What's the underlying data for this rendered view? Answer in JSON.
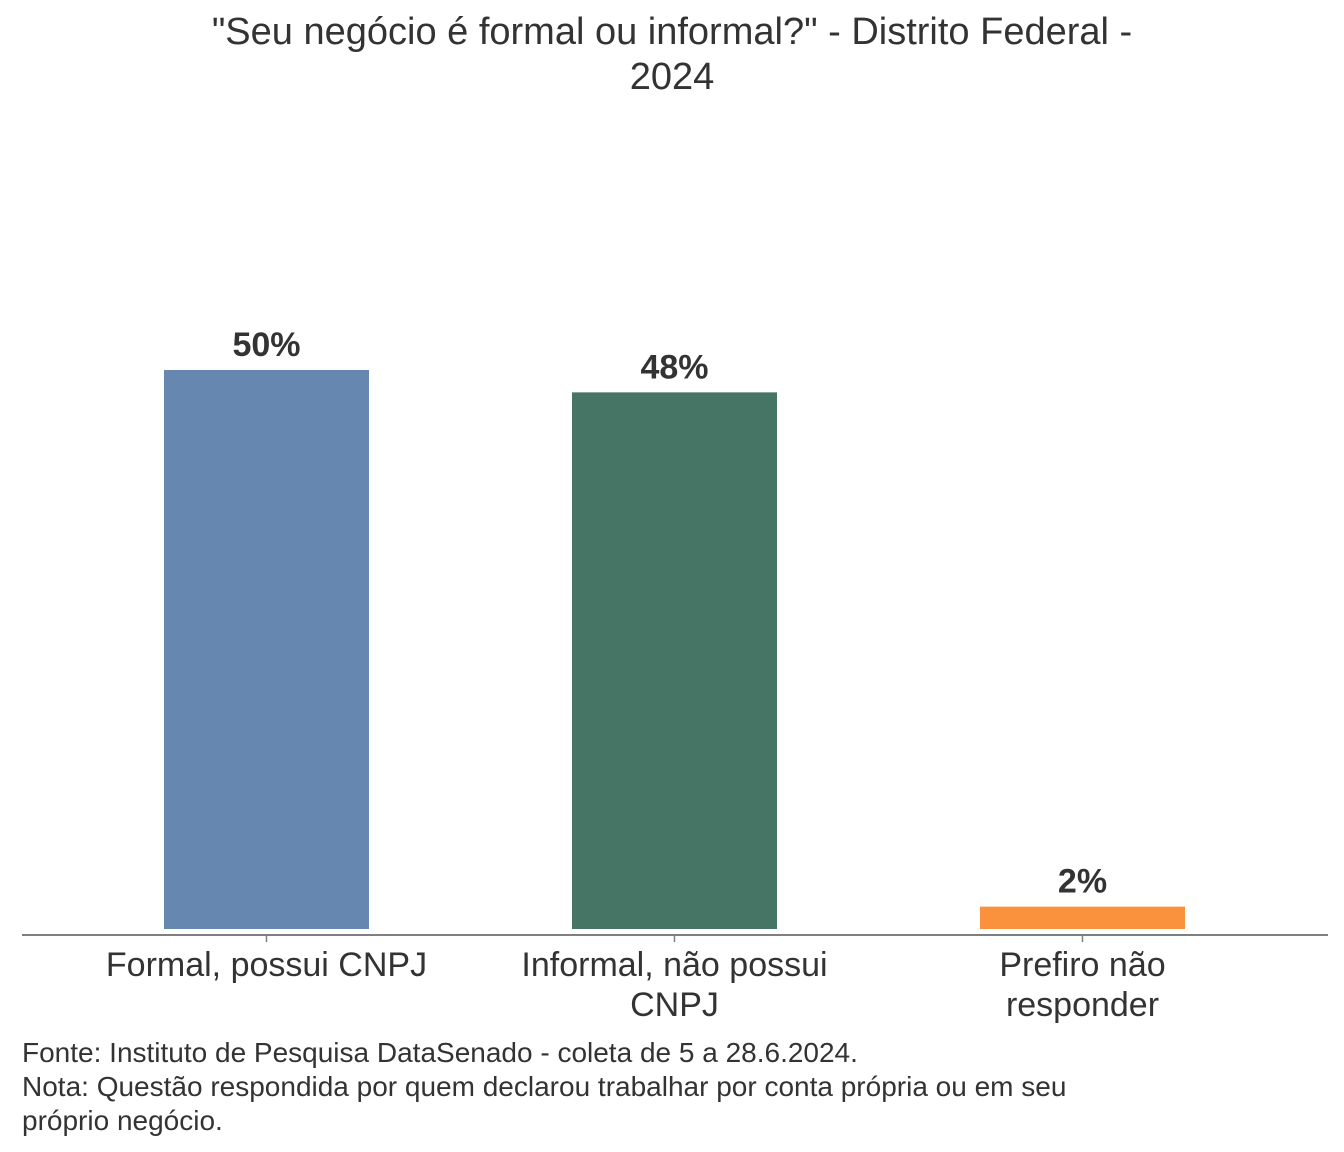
{
  "chart_data": {
    "type": "bar",
    "title_lines": [
      "\"Seu negócio é formal ou informal?\" - Distrito Federal -",
      "2024"
    ],
    "categories": [
      [
        "Formal, possui CNPJ"
      ],
      [
        "Informal, não possui",
        "CNPJ"
      ],
      [
        "Prefiro não",
        "responder"
      ]
    ],
    "values": [
      50,
      48,
      2
    ],
    "value_labels": [
      "50%",
      "48%",
      "2%"
    ],
    "colors": [
      "#6688b0",
      "#467565",
      "#fa913c"
    ],
    "ylim": [
      0,
      50
    ],
    "grid": false,
    "legend": "none",
    "xlabel": "",
    "ylabel": ""
  },
  "footer": {
    "source": "Fonte: Instituto de Pesquisa DataSenado - coleta de 5 a 28.6.2024.",
    "note_line1": "Nota: Questão respondida por quem declarou trabalhar por conta própria ou em seu",
    "note_line2": "próprio negócio."
  }
}
